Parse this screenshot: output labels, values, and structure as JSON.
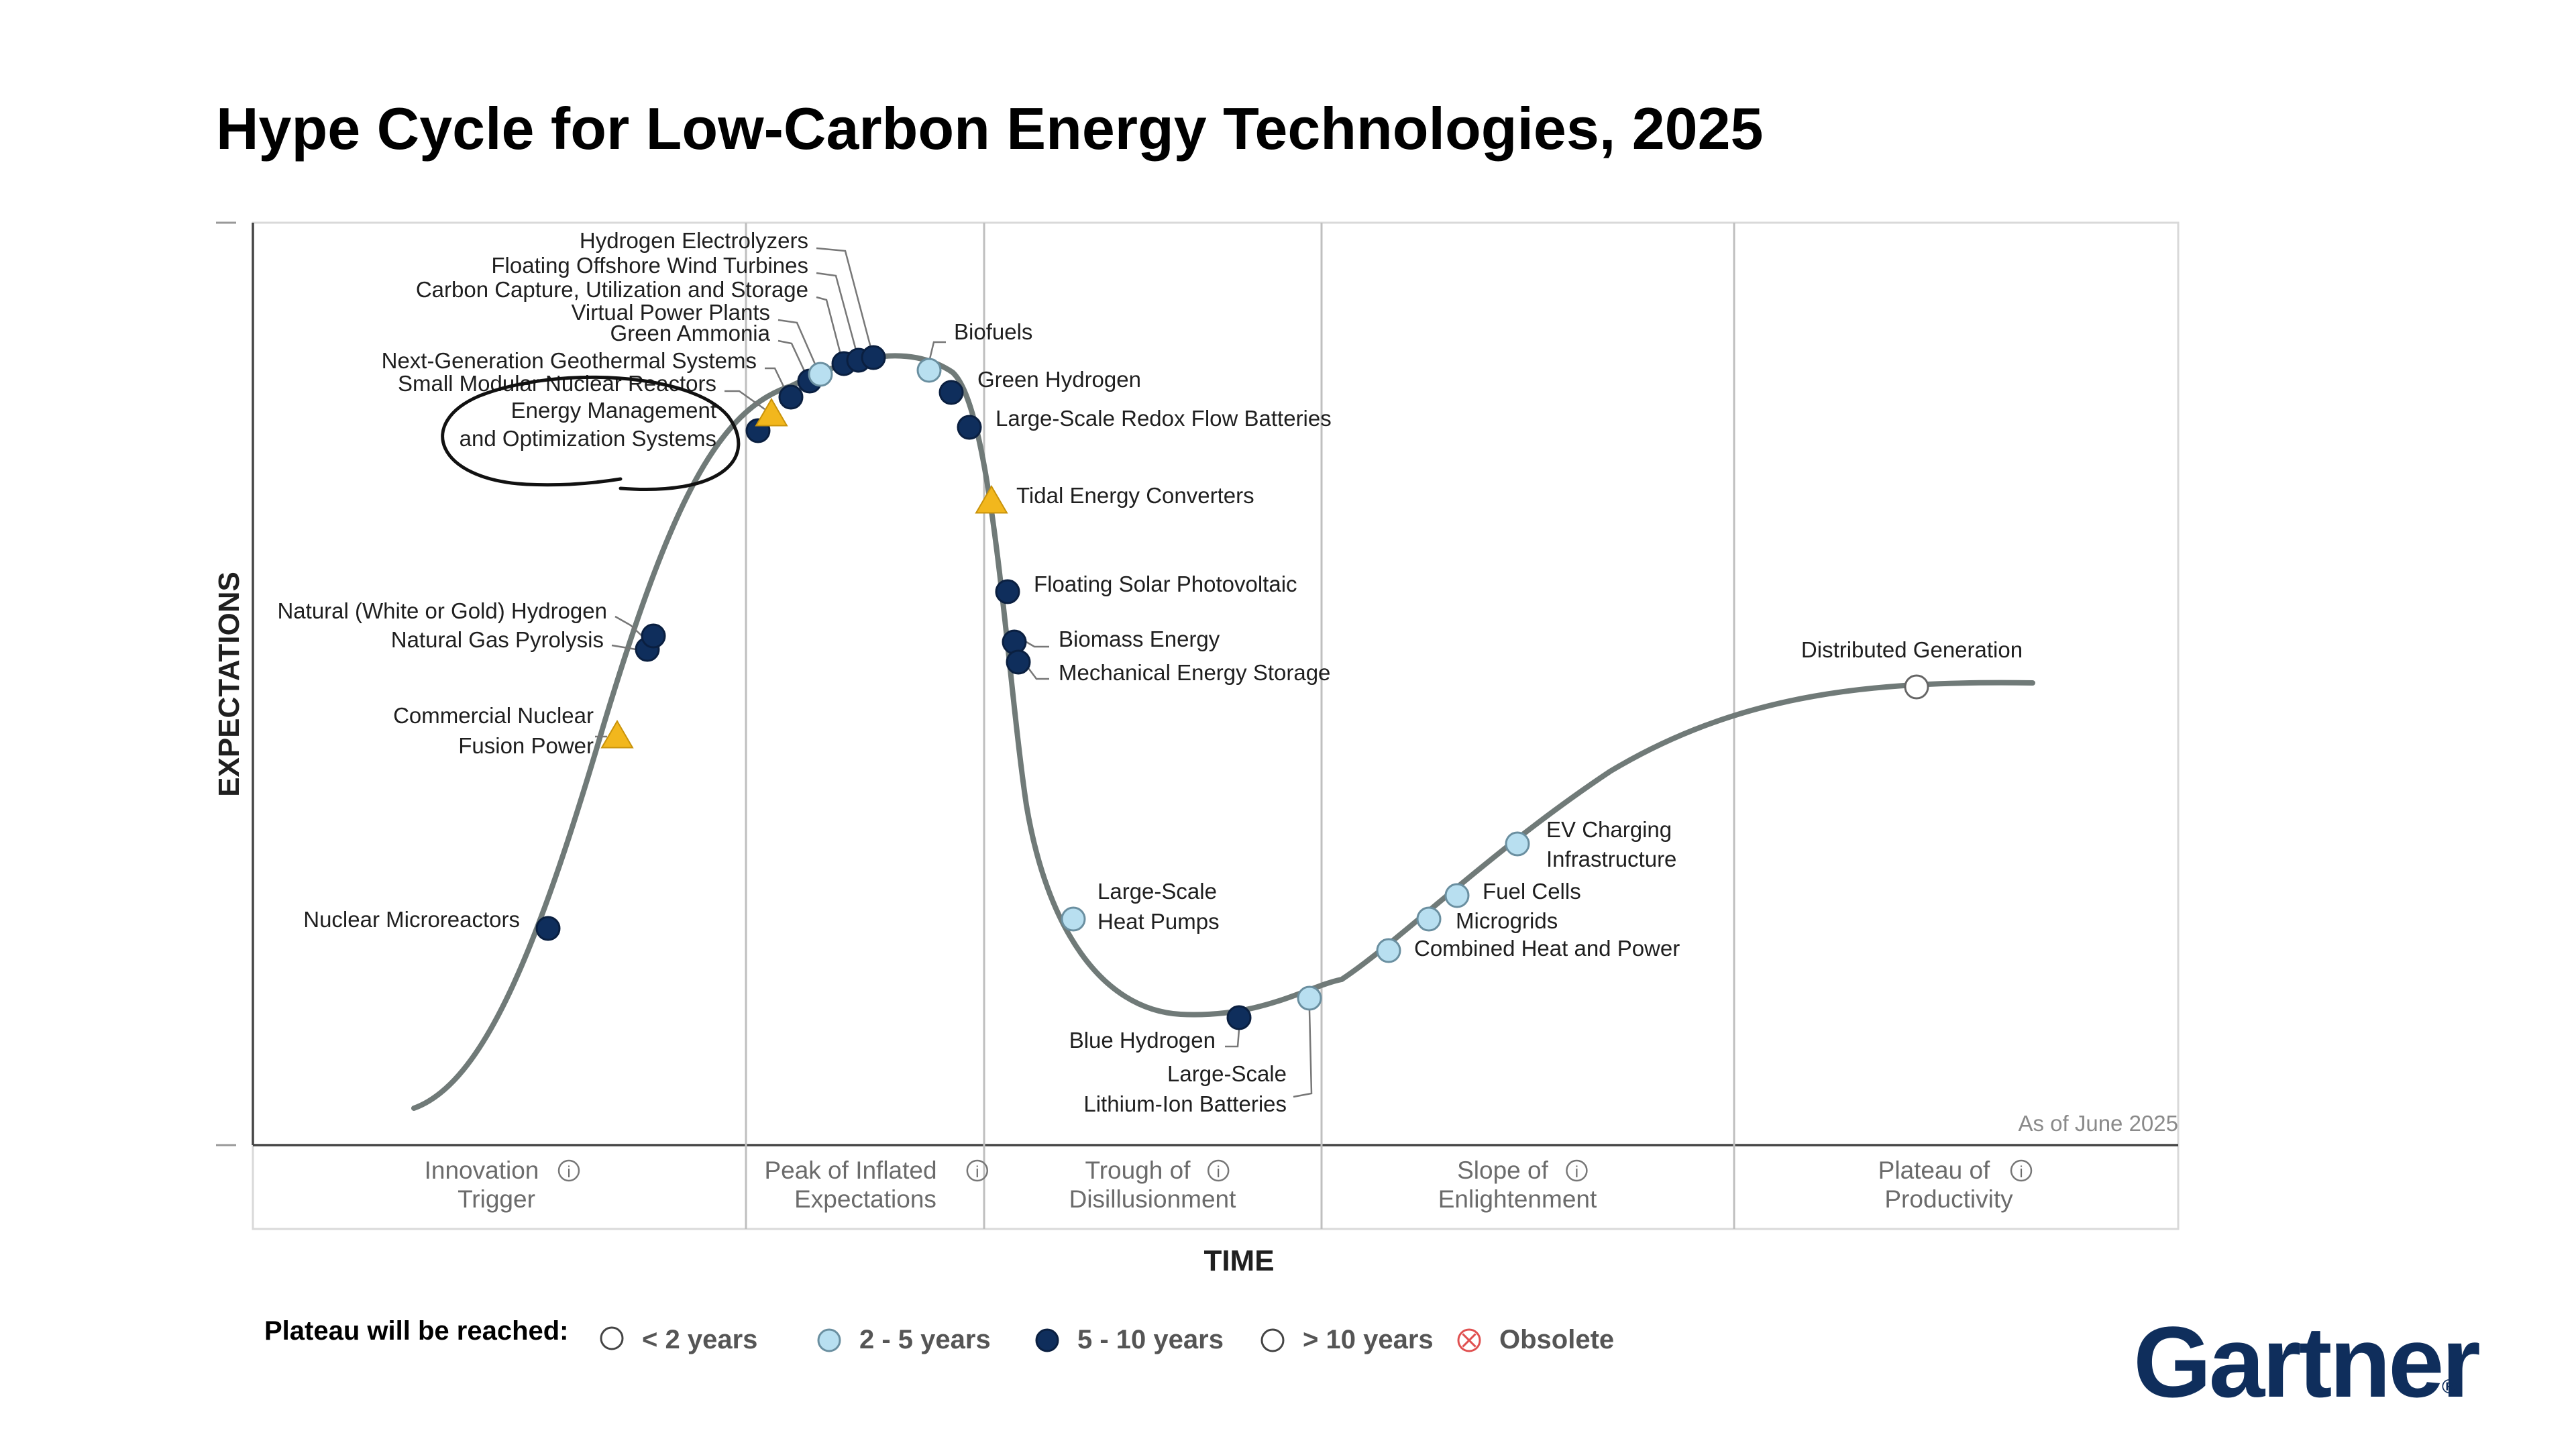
{
  "title": "Hype Cycle for Low-Carbon Energy Technologies, 2025",
  "as_of": "As of June 2025",
  "brand": "Gartner",
  "colors": {
    "lt2": "#ffffff",
    "y2to5": "#b8dff0",
    "y5to10": "#0f2e5c",
    "gt10": "#f2b71d",
    "obsolete": "#e05050",
    "curve": "#707a78",
    "annotation": "#111111"
  },
  "chart_data": {
    "type": "scatter",
    "title": "Hype Cycle for Low-Carbon Energy Technologies, 2025",
    "xlabel": "TIME",
    "ylabel": "EXPECTATIONS",
    "phases": [
      {
        "label": "Innovation Trigger"
      },
      {
        "label": "Peak of Inflated Expectations"
      },
      {
        "label": "Trough of Disillusionment"
      },
      {
        "label": "Slope of Enlightenment"
      },
      {
        "label": "Plateau of Productivity"
      }
    ],
    "legend_title": "Plateau will be reached:",
    "legend": [
      {
        "key": "lt2",
        "label": "< 2 years"
      },
      {
        "key": "y2to5",
        "label": "2 - 5 years"
      },
      {
        "key": "y5to10",
        "label": "5 - 10 years"
      },
      {
        "key": "gt10",
        "label": "> 10 years"
      },
      {
        "key": "obsolete",
        "label": "Obsolete"
      }
    ],
    "points": [
      {
        "label": "Nuclear Microreactors",
        "cat": "y5to10"
      },
      {
        "label": "Commercial Nuclear Fusion Power",
        "cat": "gt10"
      },
      {
        "label": "Natural Gas Pyrolysis",
        "cat": "y5to10"
      },
      {
        "label": "Natural (White or Gold) Hydrogen",
        "cat": "y5to10"
      },
      {
        "label": "Energy Management and Optimization Systems",
        "cat": "y5to10",
        "circled": true
      },
      {
        "label": "Small Modular Nuclear Reactors",
        "cat": "gt10"
      },
      {
        "label": "Next-Generation Geothermal Systems",
        "cat": "y5to10"
      },
      {
        "label": "Green Ammonia",
        "cat": "y5to10"
      },
      {
        "label": "Virtual Power Plants",
        "cat": "y2to5"
      },
      {
        "label": "Carbon Capture, Utilization and Storage",
        "cat": "y5to10"
      },
      {
        "label": "Floating Offshore Wind Turbines",
        "cat": "y5to10"
      },
      {
        "label": "Hydrogen Electrolyzers",
        "cat": "y5to10"
      },
      {
        "label": "Biofuels",
        "cat": "y2to5"
      },
      {
        "label": "Green Hydrogen",
        "cat": "y5to10"
      },
      {
        "label": "Large-Scale Redox Flow Batteries",
        "cat": "y5to10"
      },
      {
        "label": "Tidal Energy Converters",
        "cat": "gt10"
      },
      {
        "label": "Floating Solar Photovoltaic",
        "cat": "y5to10"
      },
      {
        "label": "Biomass Energy",
        "cat": "y5to10"
      },
      {
        "label": "Mechanical Energy Storage",
        "cat": "y5to10"
      },
      {
        "label": "Large-Scale Heat Pumps",
        "cat": "y2to5"
      },
      {
        "label": "Blue Hydrogen",
        "cat": "y5to10"
      },
      {
        "label": "Large-Scale Lithium-Ion Batteries",
        "cat": "y2to5"
      },
      {
        "label": "Combined Heat and Power",
        "cat": "y2to5"
      },
      {
        "label": "Microgrids",
        "cat": "y2to5"
      },
      {
        "label": "Fuel Cells",
        "cat": "y2to5"
      },
      {
        "label": "EV Charging Infrastructure",
        "cat": "y2to5"
      },
      {
        "label": "Distributed Generation",
        "cat": "lt2"
      }
    ]
  }
}
